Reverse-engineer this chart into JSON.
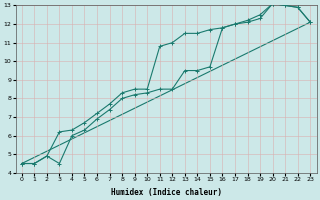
{
  "xlabel": "Humidex (Indice chaleur)",
  "bg_color": "#cce8e8",
  "grid_color": "#d9b0b0",
  "line_color": "#1a7a6e",
  "xlim": [
    -0.5,
    23.5
  ],
  "ylim": [
    4,
    13
  ],
  "xticks": [
    0,
    1,
    2,
    3,
    4,
    5,
    6,
    7,
    8,
    9,
    10,
    11,
    12,
    13,
    14,
    15,
    16,
    17,
    18,
    19,
    20,
    21,
    22,
    23
  ],
  "yticks": [
    4,
    5,
    6,
    7,
    8,
    9,
    10,
    11,
    12,
    13
  ],
  "series1_x": [
    0,
    1,
    2,
    3,
    4,
    5,
    6,
    7,
    8,
    9,
    10,
    11,
    12,
    13,
    14,
    15,
    16,
    17,
    18,
    19,
    20,
    21,
    22,
    23
  ],
  "series1_y": [
    4.5,
    4.5,
    4.9,
    6.2,
    6.3,
    6.7,
    7.2,
    7.7,
    8.3,
    8.5,
    8.5,
    10.8,
    11.0,
    11.5,
    11.5,
    11.7,
    11.8,
    12.0,
    12.2,
    12.5,
    13.1,
    13.0,
    12.9,
    12.1
  ],
  "series2_x": [
    0,
    1,
    2,
    3,
    4,
    5,
    6,
    7,
    8,
    9,
    10,
    11,
    12,
    13,
    14,
    15,
    16,
    17,
    18,
    19,
    20,
    21,
    22,
    23
  ],
  "series2_y": [
    4.5,
    4.5,
    4.9,
    4.5,
    6.0,
    6.3,
    6.9,
    7.4,
    8.0,
    8.2,
    8.3,
    8.5,
    8.5,
    9.5,
    9.5,
    9.7,
    11.8,
    12.0,
    12.1,
    12.3,
    13.1,
    13.0,
    12.9,
    12.1
  ],
  "series3_x": [
    0,
    23
  ],
  "series3_y": [
    4.5,
    12.1
  ],
  "marker": "+",
  "marker_size": 2.5,
  "line_width": 0.8
}
